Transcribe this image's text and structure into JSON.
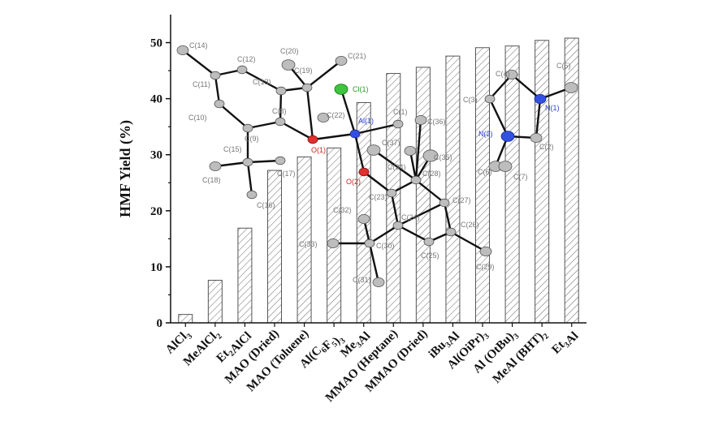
{
  "chart_data": {
    "type": "bar",
    "title": "",
    "xlabel": "",
    "ylabel": "HMF Yield (%)",
    "ylim": [
      0,
      55
    ],
    "yticks": [
      0,
      10,
      20,
      30,
      40,
      50
    ],
    "grid": false,
    "bar_fill": "diagonal-hatch",
    "bar_stroke": "#555555",
    "categories": [
      {
        "base": "AlCl",
        "sub": "3",
        "tail": ""
      },
      {
        "base": "MeAlCl",
        "sub": "2",
        "tail": ""
      },
      {
        "base": "Et",
        "sub": "2",
        "tail": "AlCl"
      },
      {
        "base": "MAO (Dried)",
        "sub": "",
        "tail": ""
      },
      {
        "base": "MAO (Toluene)",
        "sub": "",
        "tail": ""
      },
      {
        "base": "Al(C",
        "sub": "6",
        "tail": "F",
        "sub2": "5",
        "tail2": ")",
        "sub3": "3"
      },
      {
        "base": "Me",
        "sub": "3",
        "tail": "Al"
      },
      {
        "base": "MMAO (Heptane)",
        "sub": "",
        "tail": ""
      },
      {
        "base": "MMAO (Dried)",
        "sub": "",
        "tail": ""
      },
      {
        "base": "iBu",
        "sub": "3",
        "tail": "Al"
      },
      {
        "base": "Al(OiPr)",
        "sub": "3",
        "tail": ""
      },
      {
        "base": "Al (OtBu)",
        "sub": "3",
        "tail": ""
      },
      {
        "base": "MeAl (BHT)",
        "sub": "2",
        "tail": ""
      },
      {
        "base": "Et",
        "sub": "3",
        "tail": "Al"
      }
    ],
    "values": [
      1.5,
      7.6,
      16.9,
      27.2,
      29.6,
      31.2,
      39.3,
      44.5,
      45.6,
      47.6,
      49.1,
      49.4,
      50.4,
      50.8
    ]
  },
  "inset_structure_left": {
    "atom_labels": [
      "C(14)",
      "C(12)",
      "C(20)",
      "C(21)",
      "C(11)",
      "C(13)",
      "C(19)",
      "Cl(1)",
      "C(10)",
      "C(8)",
      "C(22)",
      "Al(1)",
      "C(9)",
      "C(1)",
      "C(36)",
      "C(15)",
      "O(1)",
      "C(37)",
      "C(18)",
      "C(17)",
      "C(34)",
      "C(35)",
      "O(2)",
      "C(28)",
      "C(16)",
      "C(23)",
      "C(27)",
      "C(32)",
      "C(24)",
      "C(26)",
      "C(33)",
      "C(30)",
      "C(25)",
      "C(29)",
      "C(31)"
    ]
  },
  "inset_structure_right": {
    "atom_labels": [
      "C(4)",
      "C(5)",
      "C(3)",
      "N(1)",
      "N(2)",
      "C(2)",
      "C(6)",
      "C(7)"
    ]
  }
}
